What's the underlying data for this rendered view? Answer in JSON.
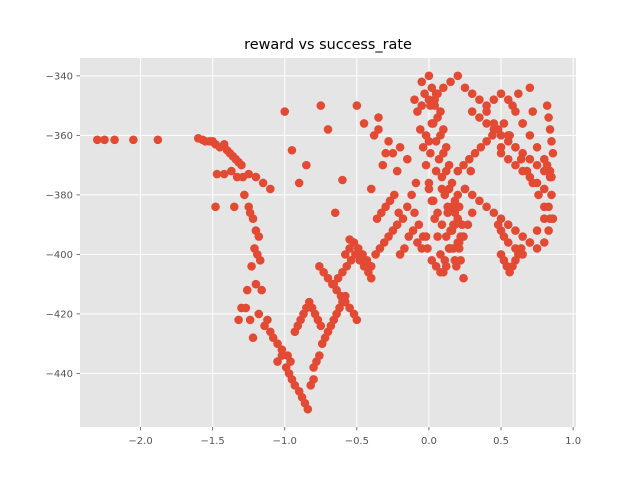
{
  "chart_data": {
    "type": "scatter",
    "title": "reward vs success_rate",
    "xlabel": "",
    "ylabel": "",
    "xlim": [
      -2.42,
      1.02
    ],
    "ylim": [
      -458,
      -334
    ],
    "xticks": [
      -2.0,
      -1.5,
      -1.0,
      -0.5,
      0.0,
      0.5,
      1.0
    ],
    "xtick_labels": [
      "−2.0",
      "−1.5",
      "−1.0",
      "−0.5",
      "0.0",
      "0.5",
      "1.0"
    ],
    "yticks": [
      -440,
      -420,
      -400,
      -380,
      -360,
      -340
    ],
    "ytick_labels": [
      "−440",
      "−420",
      "−400",
      "−380",
      "−360",
      "−340"
    ],
    "grid": true,
    "style": {
      "background": "#E5E5E5",
      "grid_color": "#FFFFFF",
      "point_color": "#E24A33"
    },
    "series": [
      {
        "x": [
          -2.3,
          -2.25,
          -2.18,
          -2.05,
          -1.88,
          -1.6,
          -1.57,
          -1.55,
          -1.52,
          -1.5,
          -1.48,
          -1.45,
          -1.42,
          -1.4,
          -1.38,
          -1.36,
          -1.34,
          -1.32,
          -1.3,
          -1.47,
          -1.42,
          -1.37,
          -1.33,
          -1.29,
          -1.48,
          -1.35,
          -1.25,
          -1.2,
          -1.15,
          -1.1,
          -1.28,
          -1.25,
          -1.24,
          -1.22,
          -1.2,
          -1.18,
          -1.21,
          -1.19,
          -1.17,
          -1.23,
          -1.26,
          -1.3,
          -1.32,
          -1.27,
          -1.24,
          -1.2,
          -1.16,
          -1.18,
          -1.22,
          -1.12,
          -1.14,
          -1.1,
          -1.08,
          -1.05,
          -1.02,
          -0.98,
          -0.96,
          -1.05,
          -1.02,
          -0.99,
          -0.97,
          -0.95,
          -0.93,
          -0.9,
          -0.88,
          -0.86,
          -0.84,
          -0.82,
          -0.8,
          -0.93,
          -0.91,
          -0.89,
          -0.87,
          -0.85,
          -0.83,
          -0.81,
          -0.79,
          -0.77,
          -0.75,
          -0.8,
          -0.78,
          -0.76,
          -0.74,
          -0.72,
          -0.7,
          -0.68,
          -0.66,
          -0.64,
          -0.62,
          -0.6,
          -0.58,
          -0.76,
          -0.73,
          -0.7,
          -0.67,
          -0.64,
          -0.61,
          -0.58,
          -0.55,
          -0.52,
          -0.5,
          -0.66,
          -0.63,
          -0.6,
          -0.57,
          -0.54,
          -0.51,
          -0.48,
          -0.45,
          -0.42,
          -0.4,
          -0.58,
          -0.55,
          -0.52,
          -0.49,
          -0.46,
          -0.43,
          -0.4,
          -0.37,
          -0.34,
          -0.31,
          -0.28,
          -0.25,
          -0.22,
          -0.36,
          -0.33,
          -0.3,
          -0.27,
          -0.24,
          -0.21,
          -0.18,
          -0.15,
          -0.12,
          -0.09,
          -0.2,
          -0.17,
          -0.14,
          -0.11,
          -0.08,
          -0.05,
          -0.02,
          -1.0,
          -0.95,
          -0.9,
          -0.85,
          -0.75,
          -0.7,
          -0.6,
          -0.65,
          -0.55,
          -0.5,
          -0.45,
          -0.38,
          -0.35,
          -0.28,
          -0.3,
          -0.32,
          -0.25,
          -0.2,
          -0.15,
          -0.35,
          -0.4,
          -0.22,
          -0.1,
          -0.08,
          -0.06,
          -0.04,
          -0.02,
          0.0,
          0.02,
          0.04,
          0.06,
          0.08,
          0.1,
          0.12,
          0.14,
          0.16,
          0.18,
          0.2,
          -0.05,
          -0.03,
          0.01,
          0.03,
          0.05,
          0.07,
          0.09,
          0.11,
          0.13,
          0.15,
          0.17,
          0.19,
          0.21,
          0.23,
          0.0,
          0.02,
          0.04,
          0.06,
          0.08,
          0.1,
          0.12,
          0.14,
          0.16,
          0.18,
          0.2,
          0.22,
          0.24,
          -0.02,
          0.01,
          0.05,
          0.09,
          0.13,
          0.17,
          0.21,
          0.25,
          0.29,
          0.0,
          0.03,
          0.06,
          0.09,
          0.12,
          0.15,
          0.18,
          0.21,
          0.24,
          0.27,
          0.3,
          -0.1,
          -0.07,
          -0.04,
          -0.01,
          0.02,
          0.05,
          0.08,
          0.11,
          0.14,
          0.0,
          0.02,
          0.04,
          0.06,
          0.08,
          0.1,
          0.12,
          0.14,
          0.16,
          0.18,
          0.2,
          0.22,
          0.2,
          0.24,
          0.28,
          0.32,
          0.36,
          0.4,
          0.44,
          0.48,
          0.52,
          0.56,
          0.6,
          0.64,
          0.68,
          0.72,
          0.76,
          0.8,
          0.84,
          0.3,
          0.35,
          0.4,
          0.45,
          0.5,
          0.55,
          0.6,
          0.65,
          0.7,
          0.75,
          0.8,
          0.85,
          0.25,
          0.3,
          0.35,
          0.4,
          0.45,
          0.5,
          0.55,
          0.6,
          0.65,
          0.7,
          0.75,
          0.8,
          0.83,
          0.86,
          0.4,
          0.45,
          0.5,
          0.55,
          0.6,
          0.65,
          0.7,
          0.75,
          0.8,
          0.84,
          0.5,
          0.55,
          0.6,
          0.65,
          0.7,
          0.75,
          0.8,
          0.85,
          0.48,
          0.5,
          0.52,
          0.55,
          0.6,
          0.65,
          0.7,
          0.75,
          0.8,
          0.83,
          0.5,
          0.52,
          0.54,
          0.56,
          0.58,
          0.6,
          0.62,
          0.64,
          0.82,
          0.83,
          0.84,
          0.85,
          0.86,
          0.82,
          0.84,
          0.58,
          0.62,
          0.7,
          0.72,
          0.65,
          0.55,
          0.5,
          0.2,
          0.25,
          0.3,
          0.35,
          0.4,
          0.45,
          0.15,
          0.1,
          0.05,
          0.0,
          -0.05
        ],
        "y": [
          -361.5,
          -361.5,
          -361.5,
          -361.5,
          -361.5,
          -361,
          -361.5,
          -362,
          -362,
          -362,
          -363,
          -364,
          -363,
          -365,
          -366,
          -367,
          -368,
          -369,
          -370,
          -373,
          -373,
          -372,
          -374,
          -374,
          -384,
          -384,
          -373,
          -374,
          -376,
          -378,
          -380,
          -384,
          -386,
          -388,
          -392,
          -394,
          -398,
          -400,
          -402,
          -404,
          -412,
          -418,
          -422,
          -418,
          -422,
          -410,
          -412,
          -420,
          -428,
          -422,
          -424,
          -426,
          -428,
          -430,
          -432,
          -434,
          -436,
          -436,
          -434,
          -438,
          -440,
          -442,
          -444,
          -446,
          -448,
          -450,
          -452,
          -444,
          -442,
          -426,
          -424,
          -422,
          -420,
          -418,
          -416,
          -418,
          -420,
          -422,
          -424,
          -438,
          -436,
          -434,
          -430,
          -428,
          -426,
          -424,
          -422,
          -420,
          -418,
          -416,
          -414,
          -404,
          -406,
          -408,
          -410,
          -412,
          -414,
          -416,
          -418,
          -420,
          -422,
          -410,
          -408,
          -406,
          -404,
          -402,
          -400,
          -402,
          -404,
          -406,
          -408,
          -400,
          -398,
          -396,
          -398,
          -400,
          -402,
          -404,
          -400,
          -398,
          -396,
          -394,
          -392,
          -390,
          -388,
          -386,
          -384,
          -382,
          -380,
          -386,
          -388,
          -384,
          -380,
          -376,
          -400,
          -398,
          -394,
          -392,
          -396,
          -398,
          -394,
          -352,
          -365,
          -376,
          -370,
          -350,
          -358,
          -375,
          -386,
          -395,
          -350,
          -356,
          -360,
          -358,
          -362,
          -366,
          -370,
          -366,
          -364,
          -368,
          -354,
          -378,
          -372,
          -348,
          -352,
          -358,
          -364,
          -370,
          -376,
          -382,
          -388,
          -394,
          -400,
          -406,
          -404,
          -398,
          -392,
          -386,
          -380,
          -342,
          -346,
          -350,
          -356,
          -362,
          -368,
          -374,
          -380,
          -386,
          -392,
          -398,
          -404,
          -396,
          -390,
          -340,
          -344,
          -348,
          -354,
          -360,
          -366,
          -372,
          -378,
          -384,
          -390,
          -396,
          -402,
          -408,
          -360,
          -366,
          -372,
          -378,
          -384,
          -390,
          -384,
          -378,
          -372,
          -378,
          -382,
          -386,
          -390,
          -394,
          -398,
          -402,
          -398,
          -394,
          -390,
          -386,
          -386,
          -390,
          -394,
          -398,
          -402,
          -404,
          -406,
          -402,
          -398,
          -362,
          -356,
          -350,
          -346,
          -352,
          -358,
          -364,
          -370,
          -376,
          -382,
          -388,
          -394,
          -372,
          -370,
          -368,
          -366,
          -364,
          -362,
          -360,
          -358,
          -356,
          -360,
          -364,
          -368,
          -372,
          -376,
          -380,
          -384,
          -388,
          -352,
          -354,
          -356,
          -358,
          -360,
          -362,
          -364,
          -366,
          -368,
          -370,
          -372,
          -374,
          -378,
          -380,
          -382,
          -384,
          -386,
          -388,
          -390,
          -392,
          -394,
          -396,
          -398,
          -396,
          -392,
          -388,
          -350,
          -348,
          -346,
          -348,
          -352,
          -356,
          -360,
          -364,
          -368,
          -372,
          -366,
          -368,
          -370,
          -372,
          -374,
          -376,
          -378,
          -380,
          -390,
          -392,
          -394,
          -396,
          -398,
          -400,
          -396,
          -392,
          -388,
          -384,
          -400,
          -402,
          -404,
          -406,
          -404,
          -402,
          -400,
          -398,
          -350,
          -354,
          -358,
          -362,
          -366,
          -370,
          -374,
          -350,
          -346,
          -344,
          -352,
          -356,
          -360,
          -364,
          -340,
          -344,
          -346,
          -348,
          -352,
          -356,
          -342,
          -344,
          -346,
          -348,
          -350
        ]
      }
    ]
  }
}
